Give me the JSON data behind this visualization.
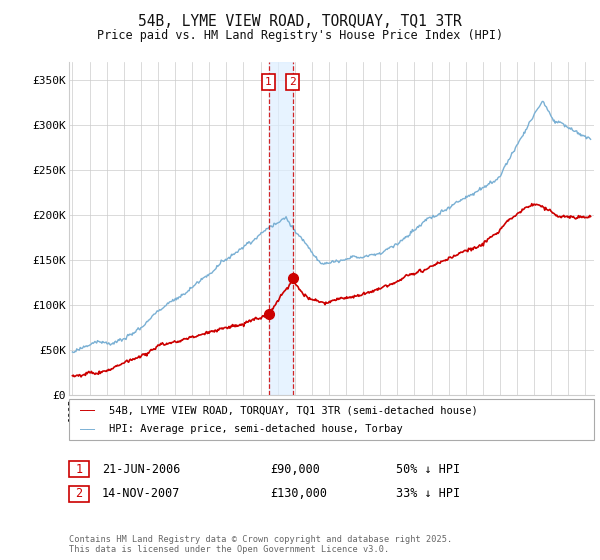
{
  "title": "54B, LYME VIEW ROAD, TORQUAY, TQ1 3TR",
  "subtitle": "Price paid vs. HM Land Registry's House Price Index (HPI)",
  "ylabel_ticks": [
    "£0",
    "£50K",
    "£100K",
    "£150K",
    "£200K",
    "£250K",
    "£300K",
    "£350K"
  ],
  "ytick_values": [
    0,
    50000,
    100000,
    150000,
    200000,
    250000,
    300000,
    350000
  ],
  "ylim": [
    0,
    370000
  ],
  "xlim_start": 1994.8,
  "xlim_end": 2025.5,
  "transaction1": {
    "date_num": 2006.47,
    "price": 90000,
    "label": "1",
    "text": "21-JUN-2006",
    "amount": "£90,000",
    "pct": "50% ↓ HPI"
  },
  "transaction2": {
    "date_num": 2007.87,
    "price": 130000,
    "label": "2",
    "text": "14-NOV-2007",
    "amount": "£130,000",
    "pct": "33% ↓ HPI"
  },
  "legend1": "54B, LYME VIEW ROAD, TORQUAY, TQ1 3TR (semi-detached house)",
  "legend2": "HPI: Average price, semi-detached house, Torbay",
  "footer": "Contains HM Land Registry data © Crown copyright and database right 2025.\nThis data is licensed under the Open Government Licence v3.0.",
  "red_color": "#cc0000",
  "blue_color": "#7ab0d4",
  "shade_color": "#ddeeff",
  "bg_color": "#ffffff",
  "grid_color": "#cccccc"
}
